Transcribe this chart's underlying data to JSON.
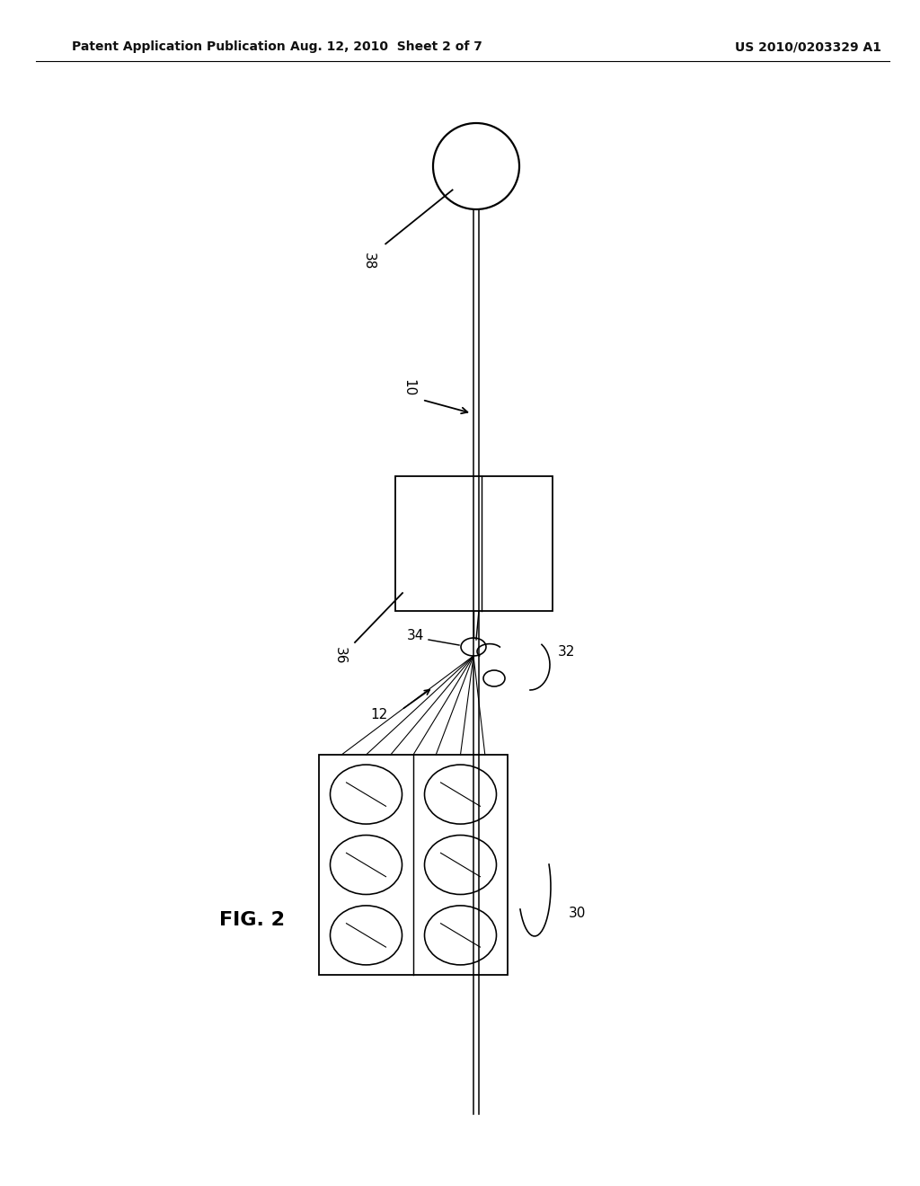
{
  "bg_color": "#ffffff",
  "header_text_left": "Patent Application Publication",
  "header_text_mid": "Aug. 12, 2010  Sheet 2 of 7",
  "header_text_right": "US 2010/0203329 A1",
  "fig_label": "FIG. 2",
  "label_38": "38",
  "label_10": "10",
  "label_36": "36",
  "label_34": "34",
  "label_32": "32",
  "label_12": "12",
  "label_30": "30",
  "line_color": "#000000",
  "line_width": 1.3,
  "fig_width": 10.24,
  "fig_height": 13.2
}
